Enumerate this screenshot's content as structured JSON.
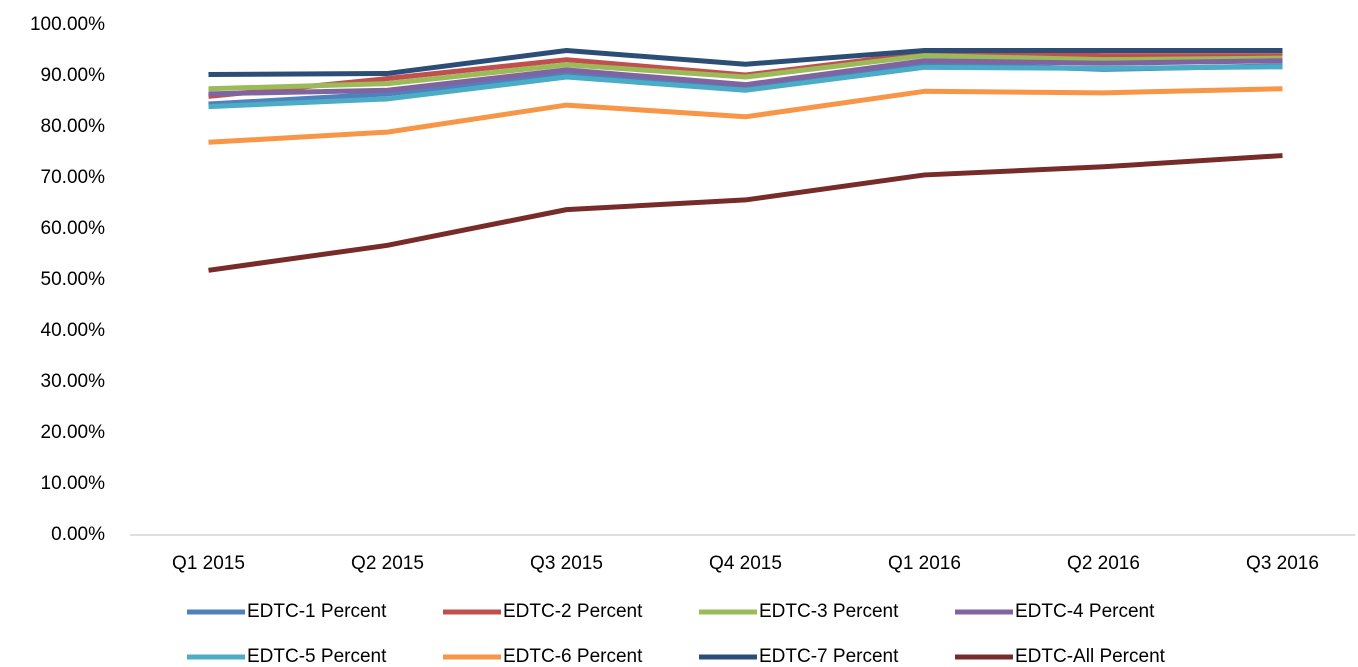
{
  "chart_data": {
    "type": "line",
    "categories": [
      "Q1 2015",
      "Q2 2015",
      "Q3 2015",
      "Q4 2015",
      "Q1 2016",
      "Q2 2016",
      "Q3 2016"
    ],
    "series": [
      {
        "name": "EDTC-1 Percent",
        "color": "#4f81bd",
        "values": [
          84.5,
          86.5,
          90.5,
          87.8,
          92.5,
          91.3,
          92
        ]
      },
      {
        "name": "EDTC-2 Percent",
        "color": "#c0504d",
        "values": [
          86,
          89.5,
          93.2,
          90.2,
          94.5,
          94,
          94
        ]
      },
      {
        "name": "EDTC-3 Percent",
        "color": "#9bbb59",
        "values": [
          87.5,
          88.5,
          92.2,
          89.8,
          94,
          93.2,
          93.5
        ]
      },
      {
        "name": "EDTC-4 Percent",
        "color": "#8064a2",
        "values": [
          86.5,
          87.2,
          91.2,
          88.3,
          93,
          92.5,
          93
        ]
      },
      {
        "name": "EDTC-5 Percent",
        "color": "#4bacc6",
        "values": [
          84,
          85.5,
          89.8,
          87.2,
          91.7,
          91.5,
          91.8
        ]
      },
      {
        "name": "EDTC-6 Percent",
        "color": "#f79646",
        "values": [
          77,
          79,
          84.3,
          82,
          87,
          86.7,
          87.5
        ]
      },
      {
        "name": "EDTC-7 Percent",
        "color": "#2c4d75",
        "values": [
          90.3,
          90.5,
          95,
          92.3,
          95,
          95,
          95
        ]
      },
      {
        "name": "EDTC-All Percent",
        "color": "#772c2a",
        "values": [
          51.9,
          56.8,
          63.8,
          65.7,
          70.6,
          72.2,
          74.4
        ]
      }
    ],
    "ylim": [
      0,
      100
    ],
    "yticks": [
      {
        "value": 0,
        "label": "0.00%"
      },
      {
        "value": 10,
        "label": "10.00%"
      },
      {
        "value": 20,
        "label": "20.00%"
      },
      {
        "value": 30,
        "label": "30.00%"
      },
      {
        "value": 40,
        "label": "40.00%"
      },
      {
        "value": 50,
        "label": "50.00%"
      },
      {
        "value": 60,
        "label": "60.00%"
      },
      {
        "value": 70,
        "label": "70.00%"
      },
      {
        "value": 80,
        "label": "80.00%"
      },
      {
        "value": 90,
        "label": "90.00%"
      },
      {
        "value": 100,
        "label": "100.00%"
      }
    ],
    "grid": false,
    "legend": "bottom"
  }
}
